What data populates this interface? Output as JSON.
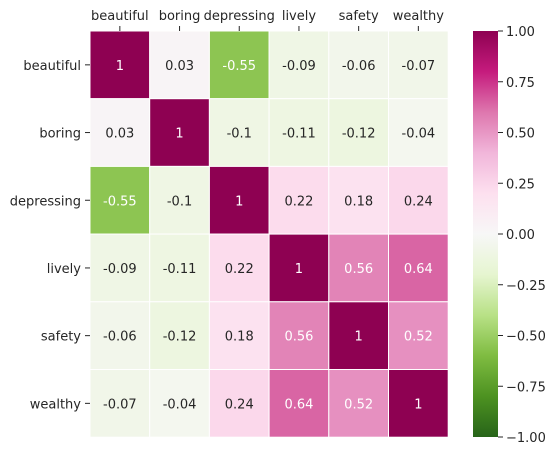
{
  "chart_data": {
    "type": "heatmap",
    "row_labels": [
      "beautiful",
      "boring",
      "depressing",
      "lively",
      "safety",
      "wealthy"
    ],
    "column_labels": [
      "beautiful",
      "boring",
      "depressing",
      "lively",
      "safety",
      "wealthy"
    ],
    "values": [
      [
        1,
        0.03,
        -0.55,
        -0.09,
        -0.06,
        -0.07
      ],
      [
        0.03,
        1,
        -0.1,
        -0.11,
        -0.12,
        -0.04
      ],
      [
        -0.55,
        -0.1,
        1,
        0.22,
        0.18,
        0.24
      ],
      [
        -0.09,
        -0.11,
        0.22,
        1,
        0.56,
        0.64
      ],
      [
        -0.06,
        -0.12,
        0.18,
        0.56,
        1,
        0.52
      ],
      [
        -0.07,
        -0.04,
        0.24,
        0.64,
        0.52,
        1
      ]
    ],
    "cell_labels": [
      [
        "1",
        "0.03",
        "-0.55",
        "-0.09",
        "-0.06",
        "-0.07"
      ],
      [
        "0.03",
        "1",
        "-0.1",
        "-0.11",
        "-0.12",
        "-0.04"
      ],
      [
        "-0.55",
        "-0.1",
        "1",
        "0.22",
        "0.18",
        "0.24"
      ],
      [
        "-0.09",
        "-0.11",
        "0.22",
        "1",
        "0.56",
        "0.64"
      ],
      [
        "-0.06",
        "-0.12",
        "0.18",
        "0.56",
        "1",
        "0.52"
      ],
      [
        "-0.07",
        "-0.04",
        "0.24",
        "0.64",
        "0.52",
        "1"
      ]
    ],
    "colormap": "PiYG",
    "colormap_stops": [
      "#276419",
      "#4d9221",
      "#7fbc41",
      "#b8e186",
      "#e6f5d0",
      "#f7f7f7",
      "#fde0ef",
      "#f1b6da",
      "#de77ae",
      "#c51b7d",
      "#8e0152"
    ],
    "vmin": -1,
    "vmax": 1,
    "x_labels_position": "top",
    "colorbar": {
      "position": "right",
      "ticks": [
        1,
        0.75,
        0.5,
        0.25,
        0,
        -0.25,
        -0.5,
        -0.75,
        -1
      ],
      "tick_labels": [
        "1.00",
        "0.75",
        "0.50",
        "0.25",
        "0.00",
        "−0.25",
        "−0.50",
        "−0.75",
        "−1.00"
      ]
    }
  }
}
